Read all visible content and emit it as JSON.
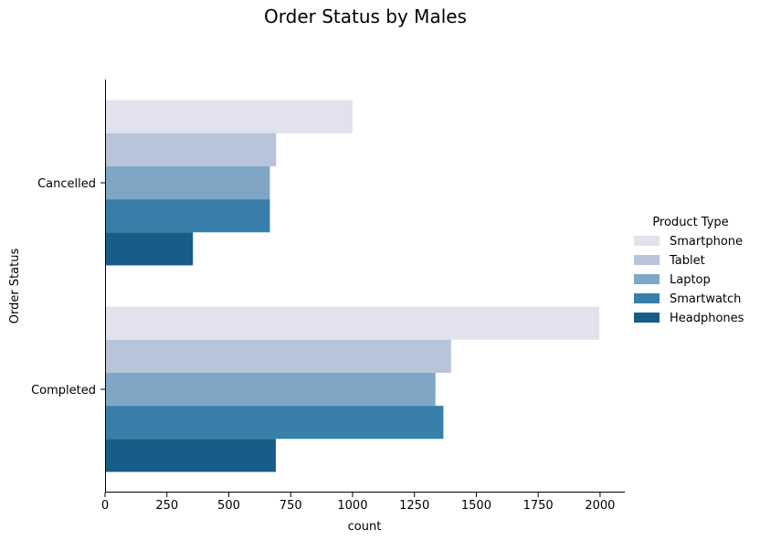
{
  "chart_data": {
    "type": "bar",
    "orientation": "horizontal",
    "title": "Order Status by Males",
    "xlabel": "count",
    "ylabel": "Order Status",
    "categories": [
      "Cancelled",
      "Completed"
    ],
    "xlim": [
      0,
      2100
    ],
    "x_ticks": [
      0,
      250,
      500,
      750,
      1000,
      1250,
      1500,
      1750,
      2000
    ],
    "grid": false,
    "legend": {
      "title": "Product Type",
      "placement": "right"
    },
    "series": [
      {
        "name": "Smartphone",
        "color": "#e2e2ee",
        "values": [
          1000,
          1997
        ]
      },
      {
        "name": "Tablet",
        "color": "#b7c4da",
        "values": [
          691,
          1398
        ]
      },
      {
        "name": "Laptop",
        "color": "#7fa7c5",
        "values": [
          666,
          1335
        ]
      },
      {
        "name": "Smartwatch",
        "color": "#3880aa",
        "values": [
          666,
          1367
        ]
      },
      {
        "name": "Headphones",
        "color": "#185d88",
        "values": [
          355,
          690
        ]
      }
    ]
  }
}
